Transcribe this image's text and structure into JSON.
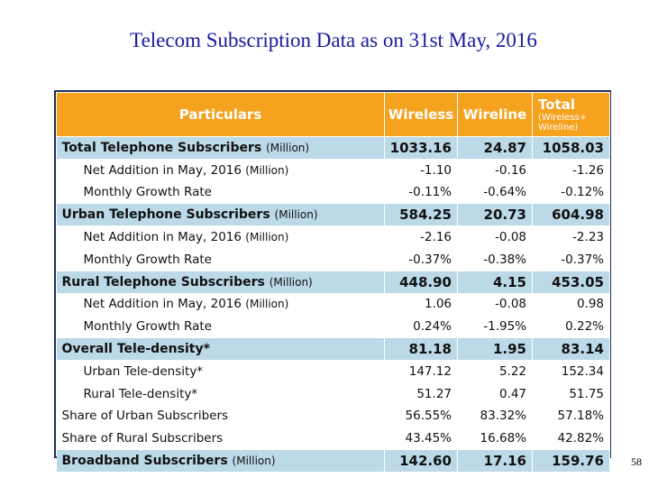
{
  "title": "Telecom Subscription Data as on 31st May, 2016",
  "page_number": "58",
  "header": {
    "particulars": "Particulars",
    "wireless": "Wireless",
    "wireline": "Wireline",
    "total": "Total",
    "total_sub": "(Wireless+ Wireline)"
  },
  "rows": [
    {
      "label": "Total Telephone Subscribers",
      "unit": "(Million)",
      "wireless": "1033.16",
      "wireline": "24.87",
      "total": "1058.03"
    },
    {
      "label": "Net Addition in May, 2016",
      "unit": "(Million)",
      "wireless": "-1.10",
      "wireline": "-0.16",
      "total": "-1.26"
    },
    {
      "label": "Monthly Growth Rate",
      "unit": "",
      "wireless": "-0.11%",
      "wireline": "-0.64%",
      "total": "-0.12%"
    },
    {
      "label": "Urban Telephone Subscribers",
      "unit": "(Million)",
      "wireless": "584.25",
      "wireline": "20.73",
      "total": "604.98"
    },
    {
      "label": "Net Addition in May, 2016",
      "unit": "(Million)",
      "wireless": "-2.16",
      "wireline": "-0.08",
      "total": "-2.23"
    },
    {
      "label": "Monthly Growth Rate",
      "unit": "",
      "wireless": "-0.37%",
      "wireline": "-0.38%",
      "total": "-0.37%"
    },
    {
      "label": "Rural Telephone Subscribers",
      "unit": "(Million)",
      "wireless": "448.90",
      "wireline": "4.15",
      "total": "453.05"
    },
    {
      "label": "Net Addition in May, 2016",
      "unit": "(Million)",
      "wireless": "1.06",
      "wireline": "-0.08",
      "total": "0.98"
    },
    {
      "label": "Monthly Growth Rate",
      "unit": "",
      "wireless": "0.24%",
      "wireline": "-1.95%",
      "total": "0.22%"
    },
    {
      "label": "Overall Tele-density*",
      "unit": "",
      "wireless": "81.18",
      "wireline": "1.95",
      "total": "83.14"
    },
    {
      "label": "Urban Tele-density*",
      "unit": "",
      "wireless": "147.12",
      "wireline": "5.22",
      "total": "152.34"
    },
    {
      "label": "Rural Tele-density*",
      "unit": "",
      "wireless": "51.27",
      "wireline": "0.47",
      "total": "51.75"
    },
    {
      "label": "Share of Urban Subscribers",
      "unit": "",
      "wireless": "56.55%",
      "wireline": "83.32%",
      "total": "57.18%"
    },
    {
      "label": "Share of Rural Subscribers",
      "unit": "",
      "wireless": "43.45%",
      "wireline": "16.68%",
      "total": "42.82%"
    },
    {
      "label": "Broadband Subscribers",
      "unit": "(Million)",
      "wireless": "142.60",
      "wireline": "17.16",
      "total": "159.76"
    }
  ]
}
